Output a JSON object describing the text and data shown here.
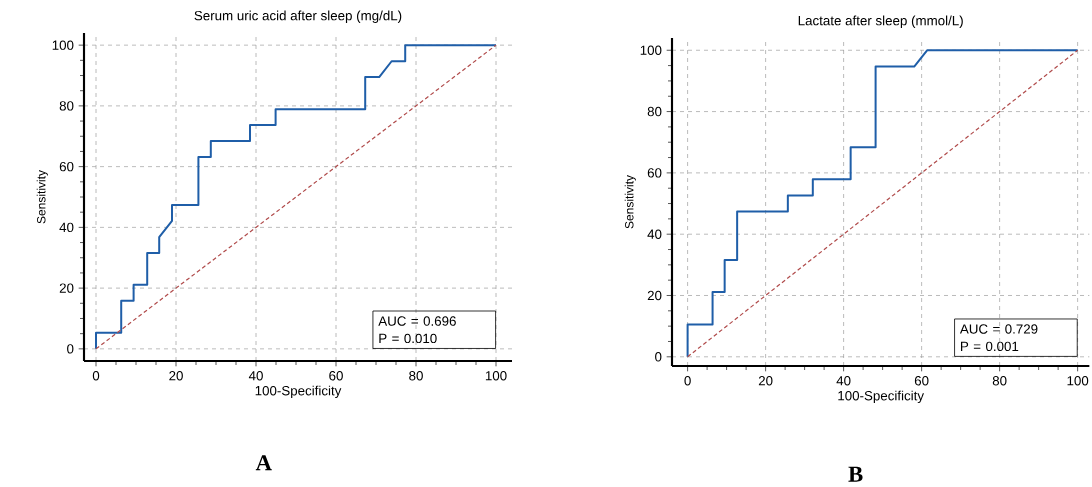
{
  "chart_data": [
    {
      "type": "line",
      "title": "Serum  uric acid  after sleep  (mg/dL)",
      "xlabel": "100-Specificity",
      "ylabel": "Sensitivity",
      "xlim": [
        -3,
        104
      ],
      "ylim": [
        -4,
        104
      ],
      "xticks": [
        0,
        20,
        40,
        60,
        80,
        100
      ],
      "yticks": [
        0,
        20,
        40,
        60,
        80,
        100
      ],
      "grid": true,
      "marker": "none",
      "series": [
        {
          "color": "#1f5ea8",
          "line_style": "solid",
          "x": [
            0,
            0,
            6.3,
            6.3,
            9.4,
            9.4,
            12.8,
            12.8,
            15.8,
            15.8,
            19.0,
            19.0,
            25.6,
            25.6,
            28.7,
            28.7,
            38.5,
            38.5,
            44.9,
            44.9,
            67.3,
            67.3,
            70.8,
            73.9,
            77.3,
            77.3,
            100
          ],
          "values": [
            0,
            5.3,
            5.3,
            15.8,
            15.8,
            21.1,
            21.1,
            31.6,
            31.6,
            36.8,
            42.1,
            47.4,
            47.4,
            63.2,
            63.2,
            68.4,
            68.4,
            73.7,
            73.7,
            78.9,
            78.9,
            89.5,
            89.5,
            94.7,
            94.7,
            100,
            100
          ]
        },
        {
          "color": "#b04a4a",
          "line_style": "dashed",
          "x": [
            0,
            100
          ],
          "values": [
            0,
            100
          ]
        }
      ],
      "annotations": [
        "AUC = 0.696",
        "P = 0.010",
        "A"
      ]
    },
    {
      "type": "line",
      "title": "Lactate  after sleep  (mmol/L)",
      "xlabel": "100-Specificity",
      "ylabel": "Sensitivity",
      "xlim": [
        -4,
        103
      ],
      "ylim": [
        -3,
        104
      ],
      "xticks": [
        0,
        20,
        40,
        60,
        80,
        100
      ],
      "yticks": [
        0,
        20,
        40,
        60,
        80,
        100
      ],
      "grid": true,
      "marker": "none",
      "series": [
        {
          "color": "#1f5ea8",
          "line_style": "solid",
          "x": [
            0,
            0,
            6.4,
            6.4,
            9.5,
            9.5,
            12.7,
            12.7,
            25.7,
            25.7,
            32.1,
            32.1,
            41.8,
            41.8,
            48.2,
            48.2,
            58.1,
            61.4,
            100
          ],
          "values": [
            0,
            10.5,
            10.5,
            21.1,
            21.1,
            31.6,
            31.6,
            47.4,
            47.4,
            52.6,
            52.6,
            57.9,
            57.9,
            68.4,
            68.4,
            94.7,
            94.7,
            100,
            100
          ]
        },
        {
          "color": "#b04a4a",
          "line_style": "dashed",
          "x": [
            0,
            100
          ],
          "values": [
            0,
            100
          ]
        }
      ],
      "annotations": [
        "AUC = 0.729",
        "P = 0.001",
        "B"
      ]
    }
  ]
}
